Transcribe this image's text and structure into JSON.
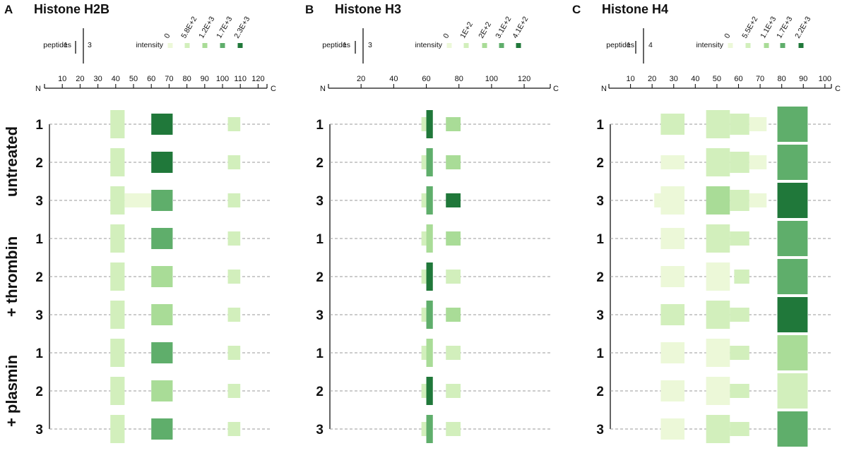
{
  "colors": {
    "scale": [
      "#ecf8d8",
      "#d2efbc",
      "#a9dc97",
      "#5fae6b",
      "#20783a"
    ],
    "baseline": "#999999",
    "axis": "#111111"
  },
  "row_groups": [
    {
      "label": "untreated",
      "replicates": [
        "1",
        "2",
        "3"
      ]
    },
    {
      "label": "+ thrombin",
      "replicates": [
        "1",
        "2",
        "3"
      ]
    },
    {
      "label": "+ plasmin",
      "replicates": [
        "1",
        "2",
        "3"
      ]
    }
  ],
  "chart_data": [
    {
      "type": "heatmap",
      "panel": "A",
      "title": "Histone H2B",
      "axis_start_label": "N",
      "axis_end_label": "C",
      "x_range": [
        0,
        125
      ],
      "x_ticks": [
        10,
        20,
        30,
        40,
        50,
        60,
        70,
        80,
        90,
        100,
        110,
        120
      ],
      "peptides_label": "peptides",
      "peptides_range": [
        "1",
        "3"
      ],
      "intensity_label": "intensity",
      "intensity_scale": [
        "0",
        "5.8E+2",
        "1.2E+3",
        "1.7E+3",
        "2.3E+3"
      ],
      "rows": [
        {
          "group": "untreated",
          "replicate": "1",
          "segments": [
            {
              "start": 37,
              "end": 45,
              "peptides": 3,
              "level": 1
            },
            {
              "start": 60,
              "end": 72,
              "peptides": 2,
              "level": 4
            },
            {
              "start": 103,
              "end": 110,
              "peptides": 1,
              "level": 1
            }
          ]
        },
        {
          "group": "untreated",
          "replicate": "2",
          "segments": [
            {
              "start": 37,
              "end": 45,
              "peptides": 3,
              "level": 1
            },
            {
              "start": 60,
              "end": 72,
              "peptides": 2,
              "level": 4
            },
            {
              "start": 103,
              "end": 110,
              "peptides": 1,
              "level": 1
            }
          ]
        },
        {
          "group": "untreated",
          "replicate": "3",
          "segments": [
            {
              "start": 37,
              "end": 45,
              "peptides": 3,
              "level": 1
            },
            {
              "start": 45,
              "end": 60,
              "peptides": 1,
              "level": 0
            },
            {
              "start": 60,
              "end": 72,
              "peptides": 2,
              "level": 3
            },
            {
              "start": 103,
              "end": 110,
              "peptides": 1,
              "level": 1
            }
          ]
        },
        {
          "group": "+ thrombin",
          "replicate": "1",
          "segments": [
            {
              "start": 37,
              "end": 45,
              "peptides": 3,
              "level": 1
            },
            {
              "start": 60,
              "end": 72,
              "peptides": 2,
              "level": 3
            },
            {
              "start": 103,
              "end": 110,
              "peptides": 1,
              "level": 1
            }
          ]
        },
        {
          "group": "+ thrombin",
          "replicate": "2",
          "segments": [
            {
              "start": 37,
              "end": 45,
              "peptides": 3,
              "level": 1
            },
            {
              "start": 60,
              "end": 72,
              "peptides": 2,
              "level": 2
            },
            {
              "start": 103,
              "end": 110,
              "peptides": 1,
              "level": 1
            }
          ]
        },
        {
          "group": "+ thrombin",
          "replicate": "3",
          "segments": [
            {
              "start": 37,
              "end": 45,
              "peptides": 3,
              "level": 1
            },
            {
              "start": 60,
              "end": 72,
              "peptides": 2,
              "level": 2
            },
            {
              "start": 103,
              "end": 110,
              "peptides": 1,
              "level": 1
            }
          ]
        },
        {
          "group": "+ plasmin",
          "replicate": "1",
          "segments": [
            {
              "start": 37,
              "end": 45,
              "peptides": 3,
              "level": 1
            },
            {
              "start": 60,
              "end": 72,
              "peptides": 2,
              "level": 3
            },
            {
              "start": 103,
              "end": 110,
              "peptides": 1,
              "level": 1
            }
          ]
        },
        {
          "group": "+ plasmin",
          "replicate": "2",
          "segments": [
            {
              "start": 37,
              "end": 45,
              "peptides": 3,
              "level": 1
            },
            {
              "start": 60,
              "end": 72,
              "peptides": 2,
              "level": 2
            },
            {
              "start": 103,
              "end": 110,
              "peptides": 1,
              "level": 1
            }
          ]
        },
        {
          "group": "+ plasmin",
          "replicate": "3",
          "segments": [
            {
              "start": 37,
              "end": 45,
              "peptides": 3,
              "level": 1
            },
            {
              "start": 60,
              "end": 72,
              "peptides": 2,
              "level": 3
            },
            {
              "start": 103,
              "end": 110,
              "peptides": 1,
              "level": 1
            }
          ]
        }
      ]
    },
    {
      "type": "heatmap",
      "panel": "B",
      "title": "Histone H3",
      "axis_start_label": "N",
      "axis_end_label": "C",
      "x_range": [
        0,
        136
      ],
      "x_ticks": [
        20,
        40,
        60,
        80,
        100,
        120
      ],
      "peptides_label": "peptides",
      "peptides_range": [
        "1",
        "3"
      ],
      "intensity_label": "intensity",
      "intensity_scale": [
        "0",
        "1E+2",
        "2E+2",
        "3.1E+2",
        "4.1E+2"
      ],
      "rows": [
        {
          "group": "untreated",
          "replicate": "1",
          "segments": [
            {
              "start": 57,
              "end": 60,
              "peptides": 1,
              "level": 1
            },
            {
              "start": 60,
              "end": 64,
              "peptides": 3,
              "level": 4
            },
            {
              "start": 72,
              "end": 81,
              "peptides": 1,
              "level": 2
            }
          ]
        },
        {
          "group": "untreated",
          "replicate": "2",
          "segments": [
            {
              "start": 57,
              "end": 60,
              "peptides": 1,
              "level": 1
            },
            {
              "start": 60,
              "end": 64,
              "peptides": 3,
              "level": 3
            },
            {
              "start": 72,
              "end": 81,
              "peptides": 1,
              "level": 2
            }
          ]
        },
        {
          "group": "untreated",
          "replicate": "3",
          "segments": [
            {
              "start": 57,
              "end": 60,
              "peptides": 1,
              "level": 1
            },
            {
              "start": 60,
              "end": 64,
              "peptides": 3,
              "level": 3
            },
            {
              "start": 72,
              "end": 81,
              "peptides": 1,
              "level": 4
            }
          ]
        },
        {
          "group": "+ thrombin",
          "replicate": "1",
          "segments": [
            {
              "start": 57,
              "end": 60,
              "peptides": 1,
              "level": 1
            },
            {
              "start": 60,
              "end": 64,
              "peptides": 3,
              "level": 2
            },
            {
              "start": 72,
              "end": 81,
              "peptides": 1,
              "level": 2
            }
          ]
        },
        {
          "group": "+ thrombin",
          "replicate": "2",
          "segments": [
            {
              "start": 57,
              "end": 60,
              "peptides": 1,
              "level": 1
            },
            {
              "start": 60,
              "end": 64,
              "peptides": 3,
              "level": 4
            },
            {
              "start": 72,
              "end": 81,
              "peptides": 1,
              "level": 1
            }
          ]
        },
        {
          "group": "+ thrombin",
          "replicate": "3",
          "segments": [
            {
              "start": 57,
              "end": 60,
              "peptides": 1,
              "level": 1
            },
            {
              "start": 60,
              "end": 64,
              "peptides": 3,
              "level": 3
            },
            {
              "start": 72,
              "end": 81,
              "peptides": 1,
              "level": 2
            }
          ]
        },
        {
          "group": "+ plasmin",
          "replicate": "1",
          "segments": [
            {
              "start": 57,
              "end": 60,
              "peptides": 1,
              "level": 1
            },
            {
              "start": 60,
              "end": 64,
              "peptides": 3,
              "level": 2
            },
            {
              "start": 72,
              "end": 81,
              "peptides": 1,
              "level": 1
            }
          ]
        },
        {
          "group": "+ plasmin",
          "replicate": "2",
          "segments": [
            {
              "start": 57,
              "end": 60,
              "peptides": 1,
              "level": 1
            },
            {
              "start": 60,
              "end": 64,
              "peptides": 3,
              "level": 4
            },
            {
              "start": 72,
              "end": 81,
              "peptides": 1,
              "level": 1
            }
          ]
        },
        {
          "group": "+ plasmin",
          "replicate": "3",
          "segments": [
            {
              "start": 57,
              "end": 60,
              "peptides": 1,
              "level": 1
            },
            {
              "start": 60,
              "end": 64,
              "peptides": 3,
              "level": 3
            },
            {
              "start": 72,
              "end": 81,
              "peptides": 1,
              "level": 1
            }
          ]
        }
      ]
    },
    {
      "type": "heatmap",
      "panel": "C",
      "title": "Histone H4",
      "axis_start_label": "N",
      "axis_end_label": "C",
      "x_range": [
        0,
        103
      ],
      "x_ticks": [
        10,
        20,
        30,
        40,
        50,
        60,
        70,
        80,
        90,
        100
      ],
      "peptides_label": "peptides",
      "peptides_range": [
        "1",
        "4"
      ],
      "intensity_label": "intensity",
      "intensity_scale": [
        "0",
        "5.5E+2",
        "1.1E+3",
        "1.7E+3",
        "2.2E+3"
      ],
      "rows": [
        {
          "group": "untreated",
          "replicate": "1",
          "segments": [
            {
              "start": 24,
              "end": 35,
              "peptides": 2,
              "level": 1
            },
            {
              "start": 45,
              "end": 56,
              "peptides": 3,
              "level": 1
            },
            {
              "start": 56,
              "end": 65,
              "peptides": 2,
              "level": 1
            },
            {
              "start": 65,
              "end": 73,
              "peptides": 1,
              "level": 0
            },
            {
              "start": 78,
              "end": 92,
              "peptides": 4,
              "level": 3
            }
          ]
        },
        {
          "group": "untreated",
          "replicate": "2",
          "segments": [
            {
              "start": 24,
              "end": 35,
              "peptides": 1,
              "level": 0
            },
            {
              "start": 45,
              "end": 56,
              "peptides": 3,
              "level": 1
            },
            {
              "start": 56,
              "end": 65,
              "peptides": 2,
              "level": 1
            },
            {
              "start": 65,
              "end": 73,
              "peptides": 1,
              "level": 0
            },
            {
              "start": 78,
              "end": 92,
              "peptides": 4,
              "level": 3
            }
          ]
        },
        {
          "group": "untreated",
          "replicate": "3",
          "segments": [
            {
              "start": 21,
              "end": 24,
              "peptides": 1,
              "level": 0
            },
            {
              "start": 24,
              "end": 35,
              "peptides": 3,
              "level": 0
            },
            {
              "start": 45,
              "end": 56,
              "peptides": 3,
              "level": 2
            },
            {
              "start": 56,
              "end": 65,
              "peptides": 2,
              "level": 1
            },
            {
              "start": 65,
              "end": 73,
              "peptides": 1,
              "level": 0
            },
            {
              "start": 78,
              "end": 92,
              "peptides": 4,
              "level": 4
            }
          ]
        },
        {
          "group": "+ thrombin",
          "replicate": "1",
          "segments": [
            {
              "start": 24,
              "end": 35,
              "peptides": 2,
              "level": 0
            },
            {
              "start": 45,
              "end": 56,
              "peptides": 3,
              "level": 1
            },
            {
              "start": 56,
              "end": 65,
              "peptides": 1,
              "level": 1
            },
            {
              "start": 78,
              "end": 92,
              "peptides": 4,
              "level": 3
            }
          ]
        },
        {
          "group": "+ thrombin",
          "replicate": "2",
          "segments": [
            {
              "start": 24,
              "end": 35,
              "peptides": 2,
              "level": 0
            },
            {
              "start": 45,
              "end": 56,
              "peptides": 3,
              "level": 0
            },
            {
              "start": 58,
              "end": 65,
              "peptides": 1,
              "level": 1
            },
            {
              "start": 78,
              "end": 92,
              "peptides": 4,
              "level": 3
            }
          ]
        },
        {
          "group": "+ thrombin",
          "replicate": "3",
          "segments": [
            {
              "start": 24,
              "end": 35,
              "peptides": 2,
              "level": 1
            },
            {
              "start": 45,
              "end": 56,
              "peptides": 3,
              "level": 1
            },
            {
              "start": 56,
              "end": 65,
              "peptides": 1,
              "level": 1
            },
            {
              "start": 78,
              "end": 92,
              "peptides": 4,
              "level": 4
            }
          ]
        },
        {
          "group": "+ plasmin",
          "replicate": "1",
          "segments": [
            {
              "start": 24,
              "end": 35,
              "peptides": 2,
              "level": 0
            },
            {
              "start": 45,
              "end": 56,
              "peptides": 3,
              "level": 0
            },
            {
              "start": 56,
              "end": 65,
              "peptides": 1,
              "level": 1
            },
            {
              "start": 78,
              "end": 92,
              "peptides": 4,
              "level": 2
            }
          ]
        },
        {
          "group": "+ plasmin",
          "replicate": "2",
          "segments": [
            {
              "start": 24,
              "end": 35,
              "peptides": 2,
              "level": 0
            },
            {
              "start": 45,
              "end": 56,
              "peptides": 3,
              "level": 0
            },
            {
              "start": 56,
              "end": 65,
              "peptides": 1,
              "level": 1
            },
            {
              "start": 78,
              "end": 92,
              "peptides": 4,
              "level": 1
            }
          ]
        },
        {
          "group": "+ plasmin",
          "replicate": "3",
          "segments": [
            {
              "start": 24,
              "end": 35,
              "peptides": 2,
              "level": 0
            },
            {
              "start": 45,
              "end": 56,
              "peptides": 3,
              "level": 1
            },
            {
              "start": 56,
              "end": 65,
              "peptides": 1,
              "level": 1
            },
            {
              "start": 78,
              "end": 92,
              "peptides": 4,
              "level": 3
            }
          ]
        }
      ]
    }
  ]
}
